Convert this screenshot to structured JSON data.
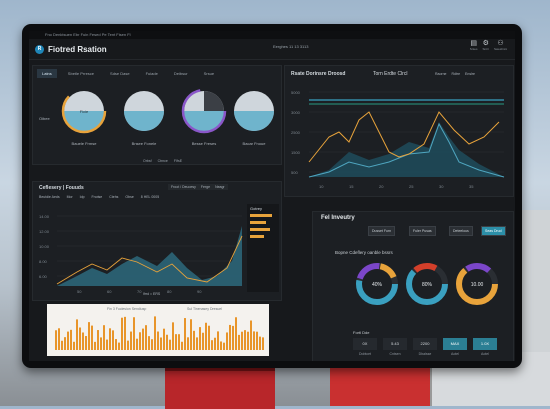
{
  "app": {
    "title": "Fiotred Rsation",
    "center_text": "Eerghes 11 13 3113",
    "sysbar": "Fno Denktsuen Ebr Fuin Fesed Pe Tent Fisen Fl"
  },
  "toolbar": {
    "icons": [
      {
        "name": "notebook-icon",
        "glyph": "▤",
        "label": "Sntes"
      },
      {
        "name": "settings-icon",
        "glyph": "⚙",
        "label": "Sntrr"
      },
      {
        "name": "user-icon",
        "glyph": "⚇",
        "label": "Sweshnni"
      }
    ]
  },
  "gauges_panel": {
    "tabs": [
      "Latns",
      "Sbetle Prresce",
      "Sdse Dase",
      "Fuiade",
      "Deibsur",
      "Srsue"
    ],
    "gauges": [
      {
        "label": "Bauele Frmse",
        "value": "Ficie",
        "pct": 0.62,
        "color": "#e8a33b"
      },
      {
        "label": "Bnsee Fonele",
        "value": "",
        "pct": 0.5,
        "color": "#6fb4cc"
      },
      {
        "label": "Besse Freses",
        "value": "",
        "pct": 0.72,
        "color": "#8a57c9"
      },
      {
        "label": "Bacar Fnoue",
        "value": "",
        "pct": 0.45,
        "color": "#6fb4cc"
      }
    ],
    "left_label": "Oibee",
    "legend": [
      "Orbsf",
      "Ctrnce",
      "FIfsE"
    ]
  },
  "chart1": {
    "title": "Rsate Dorinsre Droosd",
    "subtitle": "Torn Erdte Clrcl",
    "legend": [
      "Raorne",
      "Rdtre",
      "Enslre"
    ]
  },
  "chart2": {
    "title": "Ceflesery | Fouuds",
    "bar_items": [
      "Froot / Deuoesy",
      "Ferge",
      "Neagr"
    ],
    "sub": [
      "Beutdie Aeds",
      "Mor",
      "Idp",
      "Fnotse",
      "Ctehs",
      "Obse",
      "8 HEL 0005"
    ],
    "legend": "lfrrd = ERS",
    "side_title": "Gotrey"
  },
  "bars_panel": {
    "title": "Fin 3 Fuclesion Sendiusp",
    "title2": "Sul Tinenasey Dresuel"
  },
  "fuel": {
    "title": "Fel Inveutry",
    "buttons": [
      "Dusset Furn",
      "Fuler Pusas",
      "Deteelous",
      "Seas Drud"
    ],
    "subtitle": "Bopne Cdeflery oanble bssrs",
    "donuts": [
      {
        "value": "40%",
        "color": "#3aa0c0",
        "ring2": "#7b46c9"
      },
      {
        "value": "80%",
        "color": "#3aa0c0",
        "ring2": "#d33f2a"
      },
      {
        "value": "10.00",
        "color": "#e8a33b",
        "ring2": "#7b46c9"
      }
    ],
    "status": "Fortl Dde",
    "tiles": [
      {
        "v": "0X",
        "l": "Dobtcet"
      },
      {
        "v": "5.43",
        "l": "Cntsen"
      },
      {
        "v": "2200",
        "l": "Dbalsse"
      },
      {
        "v": "MAX",
        "l": "Aotel"
      },
      {
        "v": "1.0X",
        "l": "Aotel"
      }
    ]
  }
}
